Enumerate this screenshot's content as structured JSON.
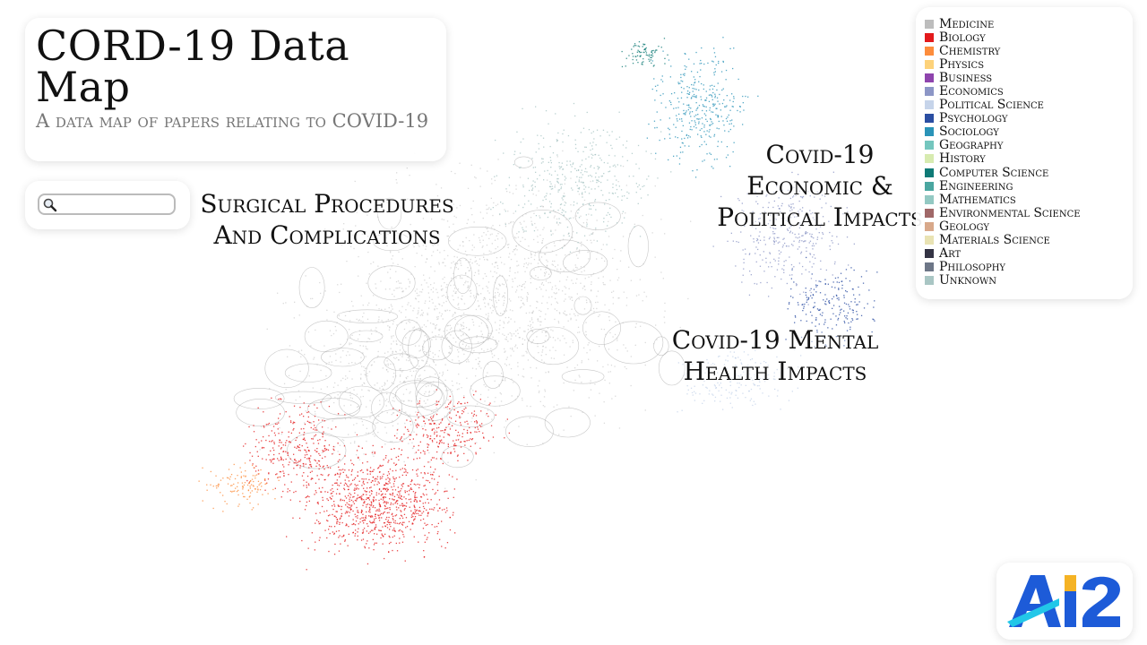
{
  "header": {
    "title": "CORD-19 Data Map",
    "subtitle": "A data map of papers relating to COVID-19"
  },
  "search": {
    "placeholder": "",
    "value": "",
    "icon": "search-icon"
  },
  "legend": [
    {
      "label": "Medicine",
      "color": "#bdbdbd"
    },
    {
      "label": "Biology",
      "color": "#e31a1c"
    },
    {
      "label": "Chemistry",
      "color": "#fd8d3c"
    },
    {
      "label": "Physics",
      "color": "#fdd27a"
    },
    {
      "label": "Business",
      "color": "#8e44ad"
    },
    {
      "label": "Economics",
      "color": "#8c96c6"
    },
    {
      "label": "Political Science",
      "color": "#c6d4ea"
    },
    {
      "label": "Psychology",
      "color": "#2b4ea2"
    },
    {
      "label": "Sociology",
      "color": "#2a93b8"
    },
    {
      "label": "Geography",
      "color": "#74c6be"
    },
    {
      "label": "History",
      "color": "#d7ebb0"
    },
    {
      "label": "Computer Science",
      "color": "#0f7a76"
    },
    {
      "label": "Engineering",
      "color": "#4aa6a0"
    },
    {
      "label": "Mathematics",
      "color": "#93c9c3"
    },
    {
      "label": "Environmental Science",
      "color": "#a06868"
    },
    {
      "label": "Geology",
      "color": "#d8a88a"
    },
    {
      "label": "Materials Science",
      "color": "#e9e3b3"
    },
    {
      "label": "Art",
      "color": "#333344"
    },
    {
      "label": "Philosophy",
      "color": "#6d7687"
    },
    {
      "label": "Unknown",
      "color": "#a9c6c4"
    }
  ],
  "clusters": {
    "surgical": "Surgical Procedures And Complications",
    "economic": "Covid-19 Economic & Political Impacts",
    "mental": "Covid-19 Mental Health Impacts"
  },
  "logo": {
    "text": "AI2",
    "colors": [
      "#1d5bd8",
      "#f5b325",
      "#22c7e8"
    ]
  }
}
